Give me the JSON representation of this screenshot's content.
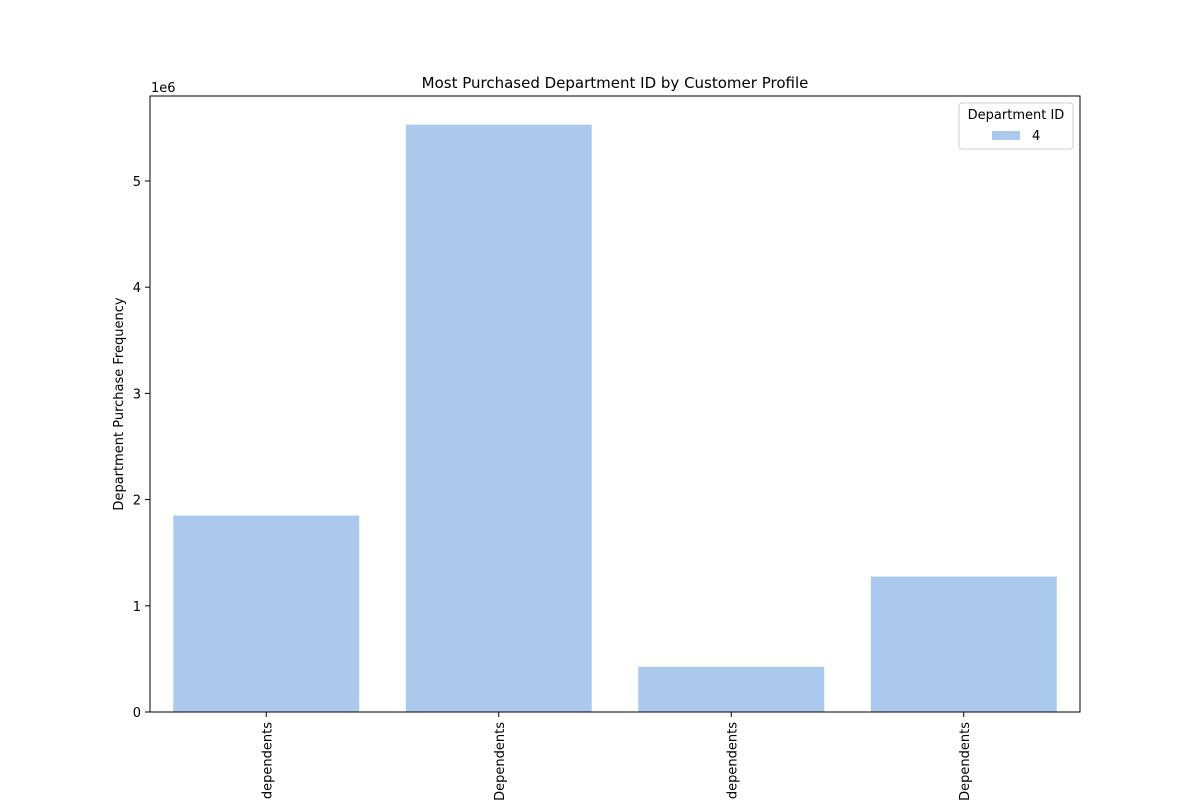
{
  "chart_data": {
    "type": "bar",
    "title": "Most Purchased Department ID by Customer Profile",
    "xlabel": "",
    "ylabel": "Department Purchase Frequency",
    "y_offset_text": "1e6",
    "ylim": [
      0,
      5800000
    ],
    "yticks": [
      0,
      1000000,
      2000000,
      3000000,
      4000000,
      5000000
    ],
    "ytick_labels": [
      "0",
      "1",
      "2",
      "3",
      "4",
      "5"
    ],
    "categories": [
      "dependents",
      "Dependents",
      "dependents",
      "Dependents"
    ],
    "series": [
      {
        "name": "4",
        "color": "#abc9ed",
        "values": [
          1850000,
          5530000,
          425000,
          1275000
        ]
      }
    ],
    "legend": {
      "title": "Department ID",
      "position": "top-right"
    },
    "grid": false
  }
}
